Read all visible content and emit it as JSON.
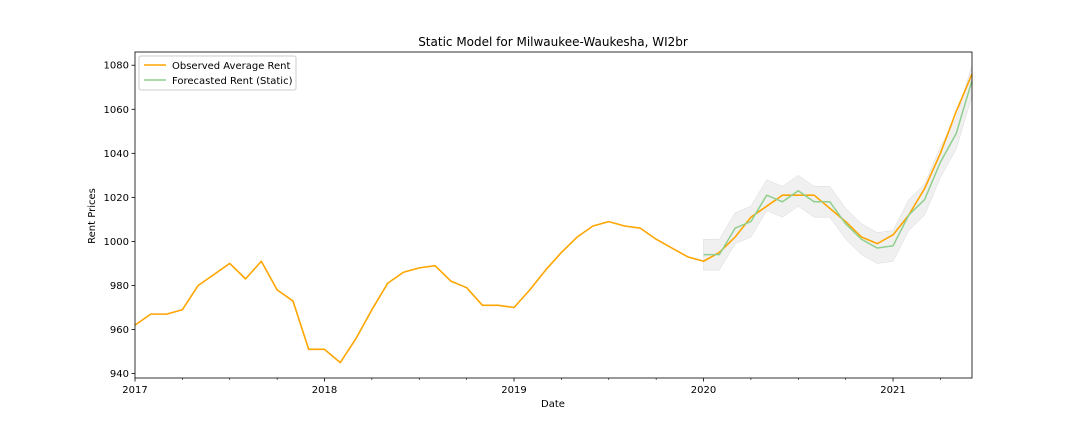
{
  "chart_data": {
    "type": "line",
    "title": "Static Model for Milwaukee-Waukesha, WI2br",
    "xlabel": "Date",
    "ylabel": "Rent Prices",
    "xlim": [
      "2017-01",
      "2021-06"
    ],
    "ylim": [
      938,
      1086
    ],
    "yticks": [
      940,
      960,
      980,
      1000,
      1020,
      1040,
      1060,
      1080
    ],
    "xticks": [
      {
        "date": "2017-01",
        "label": "2017"
      },
      {
        "date": "2018-01",
        "label": "2018"
      },
      {
        "date": "2019-01",
        "label": "2019"
      },
      {
        "date": "2020-01",
        "label": "2020"
      },
      {
        "date": "2021-01",
        "label": "2021"
      }
    ],
    "legend": {
      "position": "top-left",
      "entries": [
        "Observed Average Rent",
        "Forecasted Rent (Static)"
      ]
    },
    "grid": false,
    "colors": {
      "observed": "#ffa500",
      "forecast": "#8fcf8f",
      "band": "#e6e6e6"
    },
    "series": [
      {
        "name": "Observed Average Rent",
        "x": [
          "2017-01",
          "2017-02",
          "2017-03",
          "2017-04",
          "2017-05",
          "2017-06",
          "2017-07",
          "2017-08",
          "2017-09",
          "2017-10",
          "2017-11",
          "2017-12",
          "2018-01",
          "2018-02",
          "2018-03",
          "2018-04",
          "2018-05",
          "2018-06",
          "2018-07",
          "2018-08",
          "2018-09",
          "2018-10",
          "2018-11",
          "2018-12",
          "2019-01",
          "2019-02",
          "2019-03",
          "2019-04",
          "2019-05",
          "2019-06",
          "2019-07",
          "2019-08",
          "2019-09",
          "2019-10",
          "2019-11",
          "2019-12",
          "2020-01",
          "2020-02",
          "2020-03",
          "2020-04",
          "2020-05",
          "2020-06",
          "2020-07",
          "2020-08",
          "2020-09",
          "2020-10",
          "2020-11",
          "2020-12",
          "2021-01",
          "2021-02",
          "2021-03",
          "2021-04",
          "2021-05",
          "2021-06"
        ],
        "values": [
          962,
          967,
          967,
          969,
          980,
          985,
          990,
          983,
          991,
          978,
          973,
          951,
          951,
          945,
          956,
          969,
          981,
          986,
          988,
          989,
          982,
          979,
          971,
          971,
          970,
          978,
          987,
          995,
          1002,
          1007,
          1009,
          1007,
          1006,
          1001,
          997,
          993,
          991,
          995,
          1002,
          1011,
          1016,
          1021,
          1021,
          1021,
          1015,
          1009,
          1002,
          999,
          1003,
          1012,
          1024,
          1040,
          1059,
          1076
        ]
      },
      {
        "name": "Forecasted Rent (Static)",
        "x": [
          "2020-01",
          "2020-02",
          "2020-03",
          "2020-04",
          "2020-05",
          "2020-06",
          "2020-07",
          "2020-08",
          "2020-09",
          "2020-10",
          "2020-11",
          "2020-12",
          "2021-01",
          "2021-02",
          "2021-03",
          "2021-04",
          "2021-05",
          "2021-06"
        ],
        "values": [
          994,
          994,
          1006,
          1009,
          1021,
          1018,
          1023,
          1018,
          1018,
          1008,
          1001,
          997,
          998,
          1012,
          1019,
          1036,
          1049,
          1073
        ],
        "lower": [
          987,
          987,
          999,
          1002,
          1014,
          1011,
          1016,
          1011,
          1011,
          1001,
          994,
          990,
          991,
          1005,
          1012,
          1029,
          1042,
          1066
        ],
        "upper": [
          1001,
          1001,
          1013,
          1016,
          1028,
          1025,
          1030,
          1025,
          1025,
          1015,
          1008,
          1004,
          1005,
          1019,
          1026,
          1043,
          1056,
          1080
        ]
      }
    ]
  }
}
